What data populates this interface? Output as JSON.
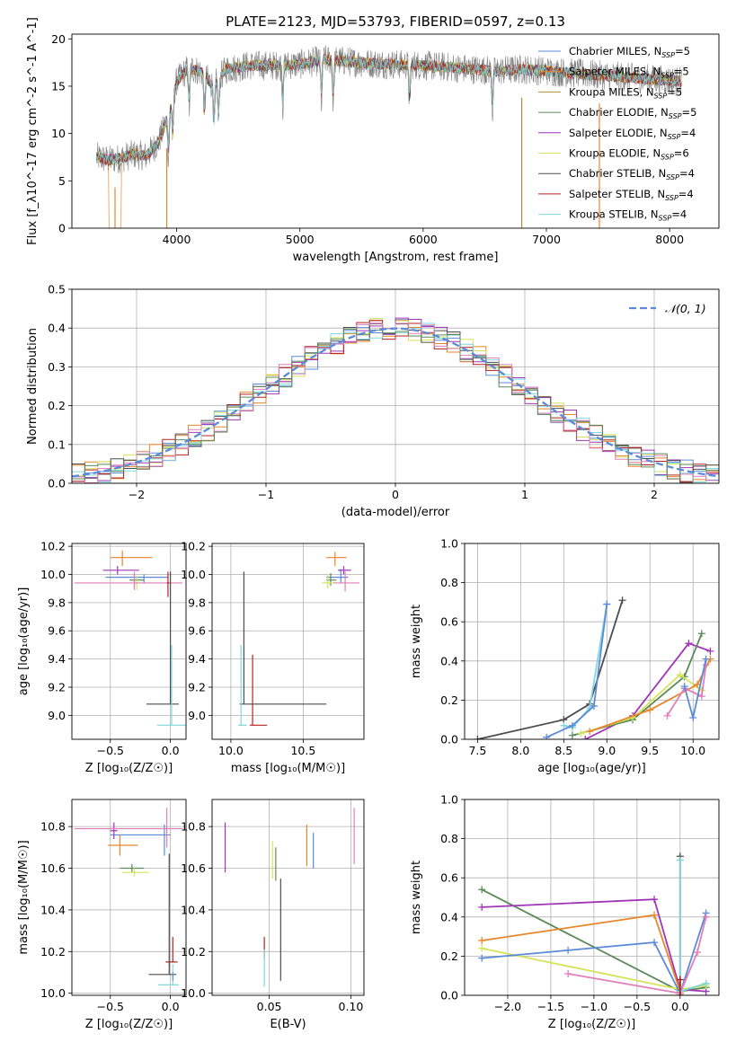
{
  "figure_title": "PLATE=2123, MJD=53793, FIBERID=0597, z=0.13",
  "colors": {
    "chabrier_miles": "#5b8bd8",
    "salpeter_miles": "#e8862a",
    "kroupa_miles": "#b58b3a",
    "chabrier_elodie": "#5a8a5a",
    "salpeter_elodie": "#a035b5",
    "kroupa_elodie": "#d4e35a",
    "chabrier_stelib": "#4d4d4d",
    "salpeter_stelib": "#b22222",
    "kroupa_stelib": "#7fd8dd",
    "pink": "#e07fb8",
    "gaussian": "#5b8bd8",
    "grid": "#b0b0b0"
  },
  "chart_data": [
    {
      "id": "spectrum",
      "type": "line",
      "xlabel": "wavelength [Angstrom, rest frame]",
      "ylabel": "Flux [f_λ10^-17 erg cm^-2 s^-1 A^-1]",
      "xlim": [
        3150,
        8400
      ],
      "ylim": [
        0,
        20.5
      ],
      "xticks": [
        4000,
        5000,
        6000,
        7000,
        8000
      ],
      "yticks": [
        0,
        5,
        10,
        15,
        20
      ],
      "grid": false,
      "legend_position": "upper right",
      "series": [
        {
          "name": "Chabrier MILES, N_SSP=5",
          "color": "#5b8bd8"
        },
        {
          "name": "Salpeter MILES, N_SSP=5",
          "color": "#e8862a"
        },
        {
          "name": "Kroupa MILES, N_SSP=5",
          "color": "#b58b3a"
        },
        {
          "name": "Chabrier ELODIE, N_SSP=5",
          "color": "#5a8a5a"
        },
        {
          "name": "Salpeter ELODIE, N_SSP=4",
          "color": "#a035b5"
        },
        {
          "name": "Kroupa ELODIE, N_SSP=6",
          "color": "#d4e35a"
        },
        {
          "name": "Chabrier STELIB, N_SSP=4",
          "color": "#4d4d4d"
        },
        {
          "name": "Salpeter STELIB, N_SSP=4",
          "color": "#b22222"
        },
        {
          "name": "Kroupa STELIB, N_SSP=4",
          "color": "#7fd8dd"
        }
      ],
      "continuum": {
        "x": [
          3350,
          3450,
          3550,
          3650,
          3750,
          3850,
          3950,
          4000,
          4100,
          4200,
          4300,
          4400,
          4600,
          4800,
          5000,
          5200,
          5400,
          5600,
          5800,
          6000,
          6200,
          6400,
          6600,
          6800,
          7000,
          7200,
          7400,
          7600,
          7800,
          8000,
          8100
        ],
        "y": [
          7.5,
          7.2,
          7.4,
          7.8,
          7.6,
          9.0,
          12.5,
          15.5,
          17.0,
          16.5,
          15.0,
          16.8,
          17.2,
          17.2,
          17.3,
          17.8,
          17.6,
          17.4,
          17.3,
          17.2,
          17.0,
          16.8,
          16.6,
          16.8,
          16.6,
          16.4,
          16.2,
          16.0,
          15.8,
          15.6,
          15.5
        ]
      },
      "absorption_lines": [
        3934,
        3969,
        4102,
        4226,
        4304,
        4340,
        4861,
        5175,
        5270,
        5890,
        6563
      ],
      "model_drops_to_zero": [
        3500,
        3920,
        6800,
        7430
      ]
    },
    {
      "id": "residuals",
      "type": "step",
      "xlabel": "(data-model)/error",
      "ylabel": "Normed distribution",
      "xlim": [
        -2.5,
        2.5
      ],
      "ylim": [
        0,
        0.5
      ],
      "xticks": [
        -2,
        -1,
        0,
        1,
        2
      ],
      "yticks": [
        0.0,
        0.1,
        0.2,
        0.3,
        0.4,
        0.5
      ],
      "grid": true,
      "bin_width": 0.1,
      "legend_position": "upper right",
      "gaussian_label": "𝒩(0, 1)"
    },
    {
      "id": "age_vs_z",
      "type": "errorbar",
      "xlabel": "Z [log₁₀(Z/Z☉)]",
      "ylabel": "age  [log₁₀(age/yr)]",
      "xlim": [
        -0.82,
        0.13
      ],
      "ylim": [
        8.83,
        10.22
      ],
      "xticks": [
        -0.5,
        0.0
      ],
      "yticks": [
        9.0,
        9.2,
        9.4,
        9.6,
        9.8,
        10.0,
        10.2
      ],
      "grid": true,
      "points": [
        {
          "color": "#5b8bd8",
          "x": -0.22,
          "xerr": [
            0.32,
            0.2
          ],
          "y": 9.98,
          "yerr": [
            0.04,
            0.02
          ]
        },
        {
          "color": "#e8862a",
          "x": -0.4,
          "xerr": [
            0.1,
            0.25
          ],
          "y": 10.12,
          "yerr": [
            0.06,
            0.05
          ]
        },
        {
          "color": "#a035b5",
          "x": -0.44,
          "xerr": [
            0.12,
            0.18
          ],
          "y": 10.03,
          "yerr": [
            0.03,
            0.03
          ]
        },
        {
          "color": "#5a8a5a",
          "x": -0.3,
          "xerr": [
            0.04,
            0.08
          ],
          "y": 9.96,
          "yerr": [
            0.04,
            0.04
          ]
        },
        {
          "color": "#d4e35a",
          "x": -0.28,
          "xerr": [
            0.06,
            0.1
          ],
          "y": 9.94,
          "yerr": [
            0.05,
            0.05
          ]
        },
        {
          "color": "#e07fb8",
          "x": -0.3,
          "xerr": [
            0.5,
            0.4
          ],
          "y": 9.94,
          "yerr": [
            0.05,
            0.08
          ]
        },
        {
          "color": "#b22222",
          "x": -0.02,
          "xerr": [
            0.01,
            0.01
          ],
          "y": 9.94,
          "yerr": [
            0.1,
            0.08
          ]
        },
        {
          "color": "#4d4d4d",
          "x": 0.0,
          "xerr": [
            0.2,
            0.07
          ],
          "y": 9.08,
          "yerr": [
            0.0,
            0.94
          ]
        },
        {
          "color": "#7fd8dd",
          "x": 0.01,
          "xerr": [
            0.12,
            0.12
          ],
          "y": 8.93,
          "yerr": [
            0.0,
            0.57
          ]
        }
      ]
    },
    {
      "id": "age_vs_mass",
      "type": "errorbar",
      "xlabel": "mass [log₁₀(M/M☉)]",
      "ylabel": "",
      "xlim": [
        9.87,
        10.92
      ],
      "ylim": [
        8.83,
        10.22
      ],
      "xticks": [
        10.0,
        10.5
      ],
      "yticks": [
        9.0,
        9.2,
        9.4,
        9.6,
        9.8,
        10.0,
        10.2
      ],
      "grid": true,
      "points": [
        {
          "color": "#5b8bd8",
          "x": 10.76,
          "xerr": [
            0.1,
            0.05
          ],
          "y": 9.98,
          "yerr": [
            0.04,
            0.06
          ]
        },
        {
          "color": "#e8862a",
          "x": 10.72,
          "xerr": [
            0.06,
            0.08
          ],
          "y": 10.12,
          "yerr": [
            0.06,
            0.04
          ]
        },
        {
          "color": "#a035b5",
          "x": 10.78,
          "xerr": [
            0.04,
            0.05
          ],
          "y": 10.03,
          "yerr": [
            0.03,
            0.03
          ]
        },
        {
          "color": "#5a8a5a",
          "x": 10.69,
          "xerr": [
            0.03,
            0.04
          ],
          "y": 9.96,
          "yerr": [
            0.04,
            0.05
          ]
        },
        {
          "color": "#d4e35a",
          "x": 10.67,
          "xerr": [
            0.04,
            0.05
          ],
          "y": 9.94,
          "yerr": [
            0.04,
            0.06
          ]
        },
        {
          "color": "#e07fb8",
          "x": 10.79,
          "xerr": [
            0.08,
            0.1
          ],
          "y": 9.94,
          "yerr": [
            0.06,
            0.08
          ]
        },
        {
          "color": "#b22222",
          "x": 10.15,
          "xerr": [
            0.02,
            0.1
          ],
          "y": 8.93,
          "yerr": [
            0.0,
            0.5
          ]
        },
        {
          "color": "#4d4d4d",
          "x": 10.09,
          "xerr": [
            0.03,
            0.57
          ],
          "y": 9.08,
          "yerr": [
            0.0,
            0.94
          ]
        },
        {
          "color": "#7fd8dd",
          "x": 10.07,
          "xerr": [
            0.02,
            0.04
          ],
          "y": 8.93,
          "yerr": [
            0.0,
            0.57
          ]
        }
      ]
    },
    {
      "id": "massweight_vs_age",
      "type": "line",
      "xlabel": "age  [log₁₀(age/yr)]",
      "ylabel": "mass weight",
      "xlim": [
        7.35,
        10.3
      ],
      "ylim": [
        0,
        1.0
      ],
      "xticks": [
        7.5,
        8.0,
        8.5,
        9.0,
        9.5,
        10.0
      ],
      "yticks": [
        0.0,
        0.2,
        0.4,
        0.6,
        0.8,
        1.0
      ],
      "grid": true,
      "series": [
        {
          "color": "#4d4d4d",
          "x": [
            7.5,
            8.5,
            8.8,
            9.18
          ],
          "y": [
            0.0,
            0.1,
            0.18,
            0.71
          ]
        },
        {
          "color": "#7fd8dd",
          "x": [
            8.5,
            8.6,
            8.8,
            9.0
          ],
          "y": [
            0.07,
            0.06,
            0.16,
            0.69
          ]
        },
        {
          "color": "#5b8bd8",
          "x": [
            8.3,
            8.6,
            8.85,
            9.0
          ],
          "y": [
            0.01,
            0.07,
            0.17,
            0.69
          ]
        },
        {
          "color": "#a035b5",
          "x": [
            8.75,
            9.3,
            9.95,
            10.2
          ],
          "y": [
            0.0,
            0.12,
            0.49,
            0.45
          ]
        },
        {
          "color": "#5a8a5a",
          "x": [
            8.6,
            9.3,
            9.9,
            10.1
          ],
          "y": [
            0.02,
            0.1,
            0.32,
            0.54
          ]
        },
        {
          "color": "#d4e35a",
          "x": [
            8.7,
            9.3,
            9.85,
            10.1
          ],
          "y": [
            0.03,
            0.11,
            0.33,
            0.25
          ]
        },
        {
          "color": "#e8862a",
          "x": [
            8.8,
            9.5,
            10.05,
            10.2
          ],
          "y": [
            0.04,
            0.15,
            0.28,
            0.41
          ]
        },
        {
          "color": "#e07fb8",
          "x": [
            9.7,
            9.9,
            10.1,
            10.15
          ],
          "y": [
            0.12,
            0.26,
            0.22,
            0.38
          ]
        },
        {
          "color": "#5b8bd8",
          "x": [
            9.9,
            10.0,
            10.15
          ],
          "y": [
            0.27,
            0.11,
            0.41
          ]
        }
      ]
    },
    {
      "id": "mass_vs_z",
      "type": "errorbar",
      "xlabel": "Z [log₁₀(Z/Z☉)]",
      "ylabel": "mass [log₁₀(M/M☉)]",
      "xlim": [
        -0.82,
        0.13
      ],
      "ylim": [
        9.99,
        10.93
      ],
      "xticks": [
        -0.5,
        0.0
      ],
      "yticks": [
        10.0,
        10.2,
        10.4,
        10.6,
        10.8
      ],
      "grid": true,
      "points": [
        {
          "color": "#5b8bd8",
          "x": -0.05,
          "xerr": [
            0.45,
            0.05
          ],
          "y": 10.76,
          "yerr": [
            0.1,
            0.05
          ]
        },
        {
          "color": "#e8862a",
          "x": -0.42,
          "xerr": [
            0.1,
            0.15
          ],
          "y": 10.71,
          "yerr": [
            0.05,
            0.05
          ]
        },
        {
          "color": "#a035b5",
          "x": -0.47,
          "xerr": [
            0.03,
            0.03
          ],
          "y": 10.78,
          "yerr": [
            0.04,
            0.04
          ]
        },
        {
          "color": "#5a8a5a",
          "x": -0.32,
          "xerr": [
            0.1,
            0.1
          ],
          "y": 10.6,
          "yerr": [
            0.02,
            0.02
          ]
        },
        {
          "color": "#d4e35a",
          "x": -0.3,
          "xerr": [
            0.1,
            0.12
          ],
          "y": 10.58,
          "yerr": [
            0.02,
            0.02
          ]
        },
        {
          "color": "#e07fb8",
          "x": -0.3,
          "xerr": [
            0.5,
            0.4
          ],
          "y": 10.79,
          "yerr": [
            0.0,
            0.0
          ]
        },
        {
          "color": "#b22222",
          "x": 0.02,
          "xerr": [
            0.06,
            0.04
          ],
          "y": 10.15,
          "yerr": [
            0.0,
            0.12
          ]
        },
        {
          "color": "#4d4d4d",
          "x": -0.01,
          "xerr": [
            0.17,
            0.06
          ],
          "y": 10.09,
          "yerr": [
            0.0,
            0.58
          ]
        },
        {
          "color": "#7fd8dd",
          "x": 0.02,
          "xerr": [
            0.12,
            0.05
          ],
          "y": 10.04,
          "yerr": [
            0.0,
            0.1
          ]
        },
        {
          "color": "#5b8bd8",
          "x": 0.02,
          "xerr": [
            0.0,
            0.0
          ],
          "y": 10.08,
          "yerr": [
            0.02,
            0.02
          ]
        },
        {
          "color": "#e07fb8",
          "x": -0.03,
          "xerr": [
            0.0,
            0.0
          ],
          "y": 10.8,
          "yerr": [
            0.1,
            0.09
          ]
        }
      ]
    },
    {
      "id": "mass_vs_ebv",
      "type": "errorbar",
      "xlabel": "E(B-V)",
      "ylabel": "",
      "xlim": [
        0.015,
        0.108
      ],
      "ylim": [
        9.99,
        10.93
      ],
      "xticks": [
        0.05,
        0.1
      ],
      "yticks": [
        10.0,
        10.2,
        10.4,
        10.6,
        10.8
      ],
      "grid": true,
      "points": [
        {
          "color": "#a035b5",
          "x": 0.023,
          "y": 10.7,
          "yerr": [
            0.12,
            0.12
          ]
        },
        {
          "color": "#d4e35a",
          "x": 0.052,
          "y": 10.63,
          "yerr": [
            0.08,
            0.1
          ]
        },
        {
          "color": "#5a8a5a",
          "x": 0.054,
          "y": 10.62,
          "yerr": [
            0.08,
            0.08
          ]
        },
        {
          "color": "#4d4d4d",
          "x": 0.057,
          "y": 10.3,
          "yerr": [
            0.24,
            0.25
          ]
        },
        {
          "color": "#b22222",
          "x": 0.047,
          "y": 10.21,
          "yerr": [
            0.04,
            0.06
          ]
        },
        {
          "color": "#7fd8dd",
          "x": 0.047,
          "y": 10.12,
          "yerr": [
            0.09,
            0.09
          ]
        },
        {
          "color": "#e8862a",
          "x": 0.073,
          "y": 10.71,
          "yerr": [
            0.1,
            0.1
          ]
        },
        {
          "color": "#5b8bd8",
          "x": 0.077,
          "y": 10.7,
          "yerr": [
            0.1,
            0.07
          ]
        },
        {
          "color": "#e07fb8",
          "x": 0.102,
          "y": 10.76,
          "yerr": [
            0.14,
            0.13
          ]
        }
      ]
    },
    {
      "id": "massweight_vs_z",
      "type": "line",
      "xlabel": "Z [log₁₀(Z/Z☉)]",
      "ylabel": "mass weight",
      "xlim": [
        -2.5,
        0.45
      ],
      "ylim": [
        0,
        1.0
      ],
      "xticks": [
        -2.0,
        -1.5,
        -1.0,
        -0.5,
        0.0
      ],
      "yticks": [
        0.0,
        0.2,
        0.4,
        0.6,
        0.8,
        1.0
      ],
      "grid": true,
      "series": [
        {
          "color": "#5a8a5a",
          "x": [
            -2.3,
            0.0,
            0.3
          ],
          "y": [
            0.54,
            0.02,
            0.04
          ]
        },
        {
          "color": "#a035b5",
          "x": [
            -2.3,
            -0.3,
            0.0,
            0.3
          ],
          "y": [
            0.45,
            0.49,
            0.03,
            0.02
          ]
        },
        {
          "color": "#e8862a",
          "x": [
            -2.3,
            -0.3,
            0.0,
            0.3
          ],
          "y": [
            0.28,
            0.41,
            0.02,
            0.06
          ]
        },
        {
          "color": "#d4e35a",
          "x": [
            -2.3,
            0.0,
            0.3
          ],
          "y": [
            0.24,
            0.03,
            0.05
          ]
        },
        {
          "color": "#5b8bd8",
          "x": [
            -2.3,
            -1.3,
            -0.3,
            0.0,
            0.3
          ],
          "y": [
            0.19,
            0.23,
            0.27,
            0.01,
            0.42
          ]
        },
        {
          "color": "#e07fb8",
          "x": [
            -1.3,
            0.0,
            0.2,
            0.3
          ],
          "y": [
            0.11,
            0.01,
            0.22,
            0.4
          ]
        },
        {
          "color": "#4d4d4d",
          "x": [
            0.0,
            0.0
          ],
          "y": [
            0.0,
            0.71
          ]
        },
        {
          "color": "#7fd8dd",
          "x": [
            0.0,
            0.0,
            0.3
          ],
          "y": [
            0.69,
            0.02,
            0.06
          ]
        },
        {
          "color": "#b22222",
          "x": [
            0.0,
            0.0
          ],
          "y": [
            0.0,
            0.08
          ]
        }
      ]
    }
  ]
}
